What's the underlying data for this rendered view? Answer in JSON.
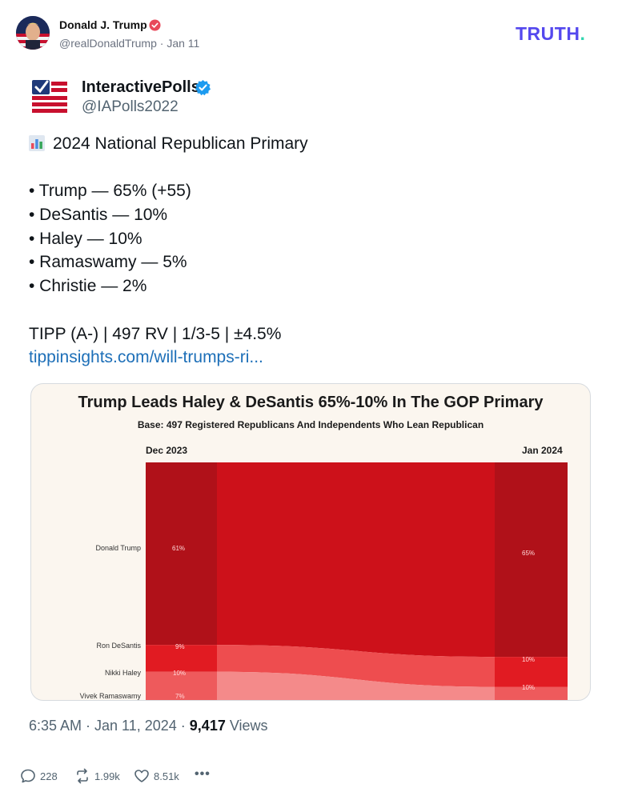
{
  "post": {
    "author_name": "Donald J. Trump",
    "author_handle": "@realDonaldTrump",
    "date": "Jan 11",
    "platform_logo_text": "TRUTH",
    "platform_logo_dot": "."
  },
  "embed": {
    "account_name": "InteractivePolls",
    "account_handle": "@IAPolls2022",
    "emoji_icon": "bar-chart-emoji",
    "headline": "2024 National Republican Primary",
    "bullets": [
      "• Trump — 65% (+55)",
      "• DeSantis — 10%",
      "• Haley — 10%",
      "• Ramaswamy — 5%",
      "• Christie — 2%"
    ],
    "poll_info": "TIPP (A-) | 497 RV | 1/3-5 | ±4.5%",
    "link": "tippinsights.com/will-trumps-ri...",
    "time": "6:35 AM · Jan 11, 2024 · ",
    "views_count": "9,417",
    "views_label": " Views"
  },
  "chart_data": {
    "type": "sankey",
    "title": "Trump Leads Haley & DeSantis 65%-10% In The GOP Primary",
    "subtitle": "Base: 497 Registered Republicans And Independents Who Lean Republican",
    "columns": [
      "Dec 2023",
      "Jan 2024"
    ],
    "series": [
      {
        "name": "Donald Trump",
        "values": [
          61,
          65
        ],
        "labels": [
          "61%",
          "65%"
        ]
      },
      {
        "name": "Ron DeSantis",
        "values": [
          9,
          10
        ],
        "labels": [
          "9%",
          "10%"
        ]
      },
      {
        "name": "Nikki Haley",
        "values": [
          10,
          10
        ],
        "labels": [
          "10%",
          "10%"
        ]
      },
      {
        "name": "Vivek Ramaswamy",
        "values": [
          7,
          null
        ],
        "labels": [
          "7%",
          ""
        ]
      }
    ],
    "colors": {
      "trump_node": "#b01119",
      "trump_flow": "#cd111a",
      "desantis_node": "#e11b22",
      "desantis_flow": "#ee4d4f",
      "haley_node": "#ee5a5c",
      "haley_flow": "#f48a8a",
      "ramaswamy_node": "#f5a3a3",
      "ramaswamy_flow": "#fadcdc",
      "background": "#fbf6ef"
    }
  },
  "actions": {
    "replies": "228",
    "reposts": "1.99k",
    "likes": "8.51k",
    "more": "•••"
  }
}
